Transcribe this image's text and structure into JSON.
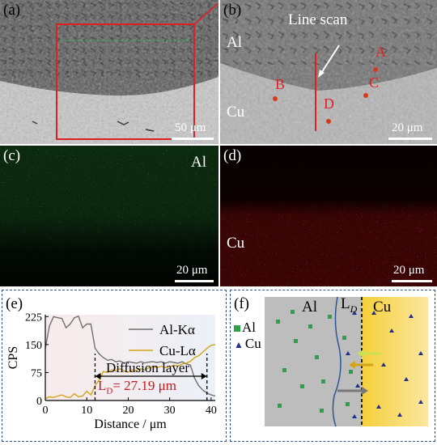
{
  "panel_a": {
    "label": "(a)",
    "scale": "50 μm"
  },
  "panel_b": {
    "label": "(b)",
    "title": "Line scan",
    "al": "Al",
    "cu": "Cu",
    "points": [
      "A",
      "B",
      "C",
      "D"
    ],
    "scale": "20 μm"
  },
  "panel_c": {
    "label": "(c)",
    "element": "Al",
    "scale": "20 μm",
    "color": "#2fbf4a"
  },
  "panel_d": {
    "label": "(d)",
    "element": "Cu",
    "scale": "20 μm",
    "color": "#e01e1e"
  },
  "panel_e": {
    "label": "(e)",
    "diffusion_label": "Diffusion layer",
    "ld_label": "L",
    "ld_sub": "D",
    "ld_value": "= 27.19 μm"
  },
  "panel_f": {
    "label": "(f)",
    "al": "Al",
    "ld": "L",
    "ld_sub": "D",
    "cu": "Cu",
    "legend_al": "Al",
    "legend_cu": "Cu"
  },
  "chart_data": {
    "type": "line",
    "xlabel": "Distance / μm",
    "ylabel": "CPS",
    "xlim": [
      0,
      41
    ],
    "ylim": [
      0,
      230
    ],
    "xticks": [
      0,
      10,
      20,
      30,
      40
    ],
    "yticks": [
      0,
      75,
      150,
      225
    ],
    "series": [
      {
        "name": "Al-Kα",
        "color": "#707070",
        "x": [
          0,
          1,
          2,
          3,
          4,
          5,
          6,
          7,
          8,
          9,
          10,
          11,
          12,
          13,
          14,
          15,
          16,
          17,
          18,
          19,
          20,
          21,
          22,
          23,
          24,
          25,
          26,
          27,
          28,
          29,
          30,
          31,
          32,
          33,
          34,
          35,
          36,
          37,
          38,
          39,
          40,
          41
        ],
        "values": [
          140,
          200,
          225,
          222,
          220,
          195,
          205,
          222,
          226,
          195,
          205,
          205,
          140,
          125,
          115,
          108,
          110,
          104,
          106,
          100,
          104,
          102,
          100,
          104,
          101,
          103,
          104,
          102,
          104,
          100,
          104,
          102,
          100,
          104,
          98,
          95,
          60,
          40,
          28,
          20,
          15,
          12
        ]
      },
      {
        "name": "Cu-Lα",
        "color": "#d4a417",
        "x": [
          0,
          1,
          2,
          3,
          4,
          5,
          6,
          7,
          8,
          9,
          10,
          11,
          12,
          13,
          14,
          15,
          16,
          17,
          18,
          19,
          20,
          21,
          22,
          23,
          24,
          25,
          26,
          27,
          28,
          29,
          30,
          31,
          32,
          33,
          34,
          35,
          36,
          37,
          38,
          39,
          40,
          41
        ],
        "values": [
          5,
          10,
          8,
          12,
          15,
          10,
          8,
          18,
          10,
          12,
          25,
          15,
          40,
          55,
          78,
          75,
          82,
          80,
          85,
          80,
          76,
          82,
          80,
          85,
          82,
          88,
          90,
          88,
          92,
          88,
          90,
          95,
          92,
          98,
          100,
          105,
          115,
          120,
          130,
          140,
          148,
          150
        ]
      }
    ]
  }
}
